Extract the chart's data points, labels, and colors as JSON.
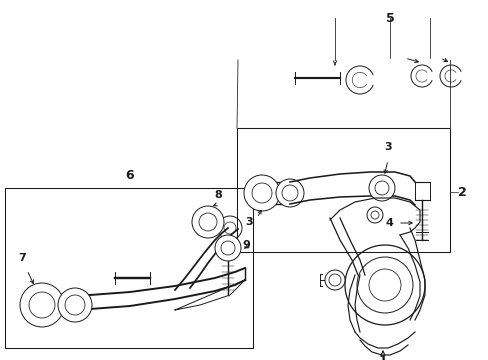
{
  "bg_color": "#ffffff",
  "lc": "#1a1a1a",
  "lw": 0.7,
  "fig_w": 4.89,
  "fig_h": 3.6,
  "dpi": 100
}
